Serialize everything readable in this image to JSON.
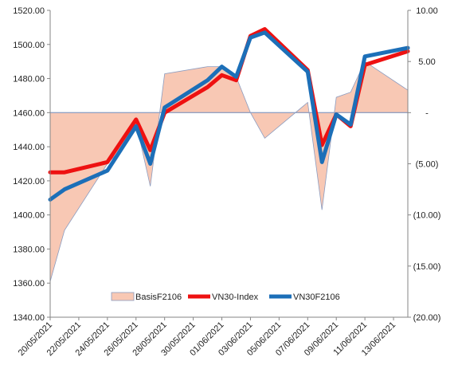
{
  "chart_data": {
    "type": "line",
    "title": "",
    "xlabel": "",
    "ylabel": "",
    "y_left_ticks": [
      "1340.00",
      "1360.00",
      "1380.00",
      "1400.00",
      "1420.00",
      "1440.00",
      "1460.00",
      "1480.00",
      "1500.00",
      "1520.00"
    ],
    "y_left_range": [
      1340,
      1520
    ],
    "y_right_ticks": [
      "(20.00)",
      "(15.00)",
      "(10.00)",
      "(5.00)",
      "-",
      "5.00",
      "10.00"
    ],
    "y_right_range": [
      -20,
      10
    ],
    "x_ticks": [
      "20/05/2021",
      "22/05/2021",
      "24/05/2021",
      "26/05/2021",
      "28/05/2021",
      "30/05/2021",
      "01/06/2021",
      "03/06/2021",
      "05/06/2021",
      "07/06/2021",
      "09/06/2021",
      "11/06/2021",
      "13/06/2021"
    ],
    "x_range": [
      "20/05/2021",
      "14/06/2021"
    ],
    "legend_position": "bottom",
    "series": [
      {
        "name": "BasisF2106",
        "kind": "area",
        "axis": "right",
        "color": "#f8c8b4",
        "stroke": "#8b9cc0",
        "points": [
          [
            "20/05/2021",
            -16.5
          ],
          [
            "21/05/2021",
            -11.5
          ],
          [
            "24/05/2021",
            -5.0
          ],
          [
            "25/05/2021",
            -3.5
          ],
          [
            "26/05/2021",
            -1.0
          ],
          [
            "27/05/2021",
            -7.2
          ],
          [
            "28/05/2021",
            3.8
          ],
          [
            "31/05/2021",
            4.5
          ],
          [
            "01/06/2021",
            4.5
          ],
          [
            "02/06/2021",
            3.5
          ],
          [
            "03/06/2021",
            0.0
          ],
          [
            "04/06/2021",
            -2.5
          ],
          [
            "07/06/2021",
            1.0
          ],
          [
            "08/06/2021",
            -9.5
          ],
          [
            "09/06/2021",
            1.5
          ],
          [
            "10/06/2021",
            2.0
          ],
          [
            "11/06/2021",
            5.0
          ],
          [
            "14/06/2021",
            2.2
          ],
          [
            "14/06/2021",
            0.0
          ]
        ]
      },
      {
        "name": "VN30-Index",
        "kind": "line",
        "axis": "left",
        "color": "#ee1111",
        "points": [
          [
            "20/05/2021",
            1425
          ],
          [
            "21/05/2021",
            1425
          ],
          [
            "24/05/2021",
            1431
          ],
          [
            "26/05/2021",
            1456
          ],
          [
            "27/05/2021",
            1438
          ],
          [
            "28/05/2021",
            1460
          ],
          [
            "31/05/2021",
            1475
          ],
          [
            "01/06/2021",
            1482
          ],
          [
            "02/06/2021",
            1479
          ],
          [
            "03/06/2021",
            1505
          ],
          [
            "04/06/2021",
            1509
          ],
          [
            "07/06/2021",
            1485
          ],
          [
            "08/06/2021",
            1441
          ],
          [
            "09/06/2021",
            1459
          ],
          [
            "10/06/2021",
            1452
          ],
          [
            "11/06/2021",
            1488
          ],
          [
            "14/06/2021",
            1496
          ]
        ]
      },
      {
        "name": "VN30F2106",
        "kind": "line",
        "axis": "left",
        "color": "#1c6fb8",
        "points": [
          [
            "20/05/2021",
            1409
          ],
          [
            "21/05/2021",
            1415
          ],
          [
            "24/05/2021",
            1426
          ],
          [
            "26/05/2021",
            1452
          ],
          [
            "27/05/2021",
            1430
          ],
          [
            "28/05/2021",
            1463
          ],
          [
            "31/05/2021",
            1479
          ],
          [
            "01/06/2021",
            1487
          ],
          [
            "02/06/2021",
            1481
          ],
          [
            "03/06/2021",
            1504
          ],
          [
            "04/06/2021",
            1507
          ],
          [
            "07/06/2021",
            1484
          ],
          [
            "08/06/2021",
            1431
          ],
          [
            "09/06/2021",
            1459
          ],
          [
            "10/06/2021",
            1453
          ],
          [
            "11/06/2021",
            1493
          ],
          [
            "14/06/2021",
            1498
          ]
        ]
      }
    ]
  }
}
